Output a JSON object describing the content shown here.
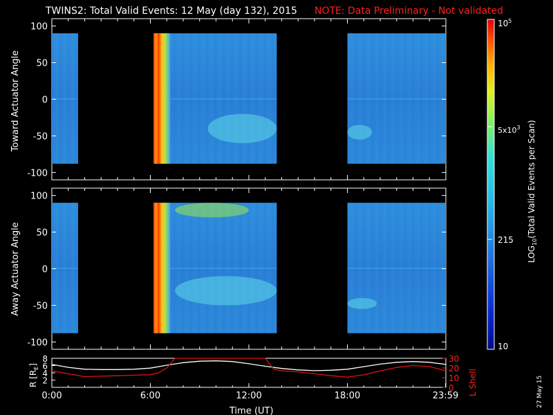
{
  "header": {
    "title": "TWINS2: Total Valid Events: 12 May (day 132), 2015",
    "note": "NOTE: Data Preliminary - Not validated"
  },
  "date_stamp": "27 May 15",
  "colors": {
    "background": "#000000",
    "note": "#ff2020",
    "r_line": "#ffffff",
    "l_shell_line": "#e01010"
  },
  "chart_data": [
    {
      "type": "heatmap",
      "ylabel": "Toward Actuator Angle",
      "ylim": [
        -110,
        110
      ],
      "yticks": [
        "100",
        "50",
        "0",
        "-50",
        "-100"
      ],
      "ytick_values": [
        100,
        50,
        0,
        -50,
        -100
      ],
      "xlim_hours": [
        0,
        24
      ],
      "data_blocks_hours": [
        [
          0,
          1.6
        ],
        [
          6.2,
          13.7
        ],
        [
          18.0,
          24.0
        ]
      ],
      "angle_range": [
        -88,
        90
      ],
      "features": [
        {
          "kind": "high-count band",
          "x_hours": [
            6.2,
            7.2
          ],
          "level": "10^5"
        },
        {
          "kind": "enhancement",
          "x_hours": [
            9.5,
            13.7
          ],
          "angle": [
            -60,
            -20
          ]
        },
        {
          "kind": "enhancement",
          "x_hours": [
            18.0,
            19.5
          ],
          "angle": [
            -55,
            -35
          ]
        }
      ]
    },
    {
      "type": "heatmap",
      "ylabel": "Away Actuator Angle",
      "ylim": [
        -110,
        110
      ],
      "yticks": [
        "100",
        "50",
        "0",
        "-50",
        "-100"
      ],
      "ytick_values": [
        100,
        50,
        0,
        -50,
        -100
      ],
      "xlim_hours": [
        0,
        24
      ],
      "data_blocks_hours": [
        [
          0,
          1.6
        ],
        [
          6.2,
          13.7
        ],
        [
          18.0,
          24.0
        ]
      ],
      "angle_range": [
        -88,
        90
      ],
      "features": [
        {
          "kind": "high-count band",
          "x_hours": [
            6.2,
            7.2
          ],
          "level": "10^5"
        },
        {
          "kind": "enhancement",
          "x_hours": [
            7.5,
            12.0
          ],
          "angle": [
            70,
            90
          ]
        },
        {
          "kind": "enhancement",
          "x_hours": [
            7.5,
            13.7
          ],
          "angle": [
            -50,
            -10
          ]
        },
        {
          "kind": "enhancement",
          "x_hours": [
            18.0,
            19.8
          ],
          "angle": [
            -55,
            -40
          ]
        }
      ]
    },
    {
      "type": "line",
      "ylabel_left": "R [RE]",
      "ylabel_right": "L Shell",
      "xlabel": "Time (UT)",
      "xticks": [
        "0:00",
        "6:00",
        "12:00",
        "18:00",
        "23:59"
      ],
      "xtick_hours": [
        0,
        6,
        12,
        18,
        23.98
      ],
      "yticks_left": [
        "8",
        "6",
        "4",
        "2"
      ],
      "yticks_left_values": [
        8,
        6,
        4,
        2
      ],
      "yticks_right": [
        "30",
        "20",
        "10",
        "0"
      ],
      "yticks_right_values": [
        30,
        20,
        10,
        0
      ],
      "ylim_left": [
        0,
        8
      ],
      "ylim_right": [
        0,
        30
      ],
      "series": [
        {
          "name": "R",
          "x": [
            0,
            1,
            2,
            3,
            4,
            5,
            6,
            7,
            8,
            9,
            10,
            11,
            12,
            13,
            14,
            15,
            16,
            17,
            18,
            19,
            20,
            21,
            22,
            23,
            24
          ],
          "values": [
            6.3,
            5.5,
            5.0,
            4.9,
            4.9,
            5.0,
            5.3,
            6.1,
            6.8,
            7.2,
            7.3,
            7.1,
            6.5,
            5.8,
            5.2,
            4.8,
            4.6,
            4.7,
            5.0,
            5.7,
            6.4,
            6.9,
            7.1,
            6.9,
            6.3
          ],
          "axis": "left"
        },
        {
          "name": "L Shell",
          "x": [
            0,
            1,
            2,
            3,
            4,
            5,
            6,
            6.5,
            7,
            7.5,
            13,
            13.5,
            14,
            15,
            16,
            17,
            18,
            19,
            20,
            21,
            22,
            23,
            24
          ],
          "values": [
            17,
            14,
            11,
            11.5,
            12,
            12.5,
            13,
            15,
            20,
            30,
            30,
            19,
            17,
            16,
            14,
            12,
            10.5,
            13,
            17,
            20.5,
            22.5,
            21.5,
            17
          ],
          "axis": "right"
        }
      ]
    }
  ],
  "colorbar": {
    "label": "LOG10(Total Valid Events per Scan)",
    "scale": "log",
    "range": [
      10,
      100000
    ],
    "ticks": [
      "10^5",
      "5x10^3",
      "215",
      "10"
    ],
    "tick_values": [
      100000,
      5000,
      215,
      10
    ],
    "labels": {
      "top_base": "10",
      "top_exp": "5",
      "mid_base": "5x10",
      "mid_exp": "3",
      "low": "215",
      "bottom": "10",
      "axis_log": "LOG",
      "axis_sub": "10",
      "axis_rest": "(Total Valid Events per Scan)"
    }
  },
  "line_panel_labels": {
    "left_main": "R [R",
    "left_sub": "E",
    "left_close": "]",
    "right": "L Shell",
    "xlabel": "Time (UT)"
  }
}
